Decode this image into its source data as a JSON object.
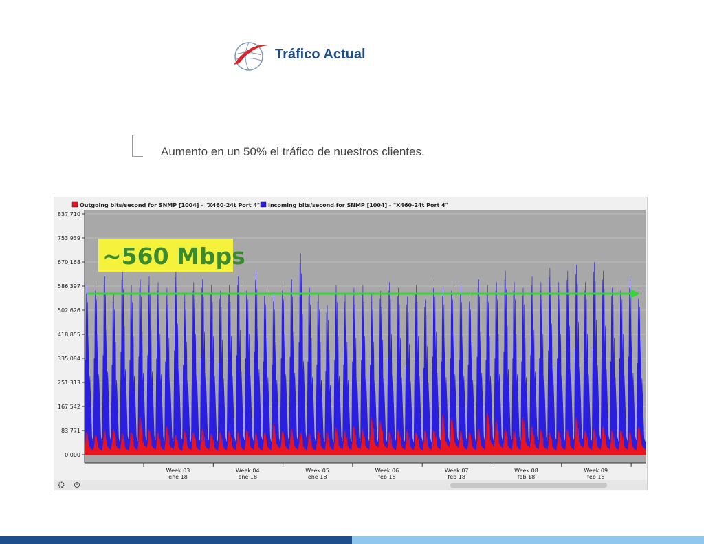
{
  "header": {
    "title": "Tráfico Actual",
    "logo_icon": "globe-swoosh-logo"
  },
  "subtitle": "Aumento en un 50% el tráfico de nuestros clientes.",
  "colors": {
    "outgoing": "#e8141e",
    "incoming": "#2a1ee0",
    "plot_bg": "#a8a8a8",
    "annotation_bg": "#f4f23a",
    "annotation_text": "#3a8a32",
    "arrow": "#37d437",
    "brand": "#1f4e8c",
    "footer_light": "#8fc8ec"
  },
  "chart_data": {
    "type": "line",
    "legend": [
      {
        "name": "Outgoing bits/second for SNMP [1004] - \"X460-24t Port 4\"",
        "color": "#e8141e"
      },
      {
        "name": "Incoming bits/second for SNMP [1004] - \"X460-24t Port 4\"",
        "color": "#2a1ee0"
      }
    ],
    "legend_placement": "top",
    "y_ticks": [
      "837,710",
      "753,939",
      "670,168",
      "586,397",
      "502,626",
      "418,855",
      "335,084",
      "251,313",
      "167,542",
      "83,771",
      "0,000"
    ],
    "ylim": [
      0,
      837.71
    ],
    "x_ticks": [
      {
        "week": "Week 03",
        "date": "ene 18"
      },
      {
        "week": "Week 04",
        "date": "ene 18"
      },
      {
        "week": "Week 05",
        "date": "ene 18"
      },
      {
        "week": "Week 06",
        "date": "feb 18"
      },
      {
        "week": "Week 07",
        "date": "feb 18"
      },
      {
        "week": "Week 08",
        "date": "feb 18"
      },
      {
        "week": "Week 09",
        "date": "feb 18"
      }
    ],
    "annotation": {
      "text": "~560 Mbps",
      "value": 560
    },
    "series": [
      {
        "name": "Incoming bits/second for SNMP [1004] - \"X460-24t Port 4\"",
        "daily_peaks": [
          590,
          600,
          620,
          560,
          640,
          590,
          610,
          620,
          600,
          580,
          650,
          560,
          600,
          610,
          590,
          570,
          590,
          620,
          600,
          640,
          580,
          560,
          600,
          610,
          700,
          580,
          560,
          520,
          590,
          560,
          580,
          590,
          560,
          570,
          600,
          580,
          550,
          590,
          540,
          610,
          580,
          600,
          590,
          560,
          610,
          590,
          600,
          640,
          600,
          580,
          620,
          600,
          650,
          600,
          640,
          660,
          600,
          670,
          640,
          580,
          600,
          610,
          570
        ]
      },
      {
        "name": "Outgoing bits/second for SNMP [1004] - \"X460-24t Port 4\"",
        "daily_peaks": [
          80,
          70,
          85,
          90,
          75,
          80,
          130,
          90,
          80,
          100,
          70,
          85,
          80,
          90,
          75,
          80,
          85,
          80,
          90,
          75,
          80,
          110,
          85,
          90,
          80,
          75,
          85,
          80,
          95,
          85,
          100,
          90,
          130,
          120,
          80,
          90,
          85,
          80,
          85,
          90,
          140,
          130,
          85,
          80,
          90,
          150,
          120,
          90,
          85,
          130,
          100,
          90,
          80,
          85,
          90,
          130,
          85,
          90,
          100,
          85,
          90,
          80,
          100
        ]
      }
    ]
  }
}
